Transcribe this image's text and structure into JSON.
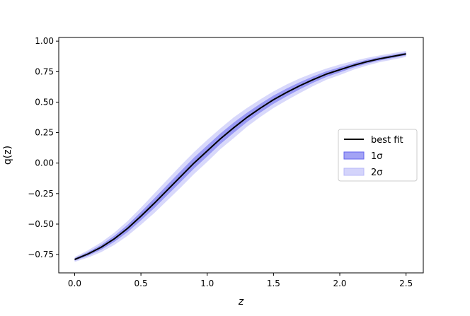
{
  "chart_data": {
    "type": "line",
    "xlabel": "z",
    "ylabel": "q(z)",
    "xlim": [
      -0.12,
      2.63
    ],
    "ylim": [
      -0.9,
      1.03
    ],
    "xticks": [
      0.0,
      0.5,
      1.0,
      1.5,
      2.0,
      2.5
    ],
    "xtick_labels": [
      "0.0",
      "0.5",
      "1.0",
      "1.5",
      "2.0",
      "2.5"
    ],
    "yticks": [
      -0.75,
      -0.5,
      -0.25,
      0.0,
      0.25,
      0.5,
      0.75,
      1.0
    ],
    "ytick_labels": [
      "−0.75",
      "−0.50",
      "−0.25",
      "0.00",
      "0.25",
      "0.50",
      "0.75",
      "1.00"
    ],
    "grid": false,
    "legend_position": "center-right",
    "colors": {
      "best_fit": "#000000",
      "sigma1": "#6666ee",
      "sigma2": "#b8b8f8"
    },
    "x": [
      0.0,
      0.1,
      0.2,
      0.3,
      0.4,
      0.5,
      0.6,
      0.7,
      0.8,
      0.9,
      1.0,
      1.1,
      1.2,
      1.3,
      1.4,
      1.5,
      1.6,
      1.7,
      1.8,
      1.9,
      2.0,
      2.1,
      2.2,
      2.3,
      2.4,
      2.5
    ],
    "best_fit": [
      -0.79,
      -0.745,
      -0.69,
      -0.62,
      -0.535,
      -0.435,
      -0.33,
      -0.22,
      -0.11,
      0.0,
      0.1,
      0.2,
      0.29,
      0.375,
      0.45,
      0.52,
      0.58,
      0.635,
      0.685,
      0.73,
      0.765,
      0.8,
      0.83,
      0.855,
      0.875,
      0.895
    ],
    "sigma1_upper": [
      -0.78,
      -0.73,
      -0.67,
      -0.595,
      -0.505,
      -0.4,
      -0.29,
      -0.178,
      -0.066,
      0.045,
      0.145,
      0.243,
      0.332,
      0.413,
      0.486,
      0.554,
      0.612,
      0.664,
      0.711,
      0.753,
      0.786,
      0.818,
      0.846,
      0.869,
      0.888,
      0.907
    ],
    "sigma1_lower": [
      -0.8,
      -0.76,
      -0.71,
      -0.645,
      -0.565,
      -0.47,
      -0.37,
      -0.262,
      -0.154,
      -0.045,
      0.055,
      0.157,
      0.248,
      0.337,
      0.414,
      0.486,
      0.548,
      0.606,
      0.659,
      0.707,
      0.744,
      0.782,
      0.814,
      0.841,
      0.862,
      0.883
    ],
    "sigma2_upper": [
      -0.77,
      -0.715,
      -0.65,
      -0.57,
      -0.475,
      -0.365,
      -0.25,
      -0.135,
      -0.02,
      0.09,
      0.19,
      0.285,
      0.375,
      0.452,
      0.522,
      0.588,
      0.645,
      0.695,
      0.738,
      0.776,
      0.808,
      0.836,
      0.862,
      0.883,
      0.902,
      0.92
    ],
    "sigma2_lower": [
      -0.81,
      -0.775,
      -0.73,
      -0.67,
      -0.595,
      -0.505,
      -0.41,
      -0.305,
      -0.2,
      -0.09,
      0.01,
      0.115,
      0.205,
      0.298,
      0.378,
      0.452,
      0.515,
      0.575,
      0.632,
      0.684,
      0.722,
      0.764,
      0.798,
      0.827,
      0.848,
      0.87
    ],
    "legend": [
      "best fit",
      "1σ",
      "2σ"
    ]
  }
}
